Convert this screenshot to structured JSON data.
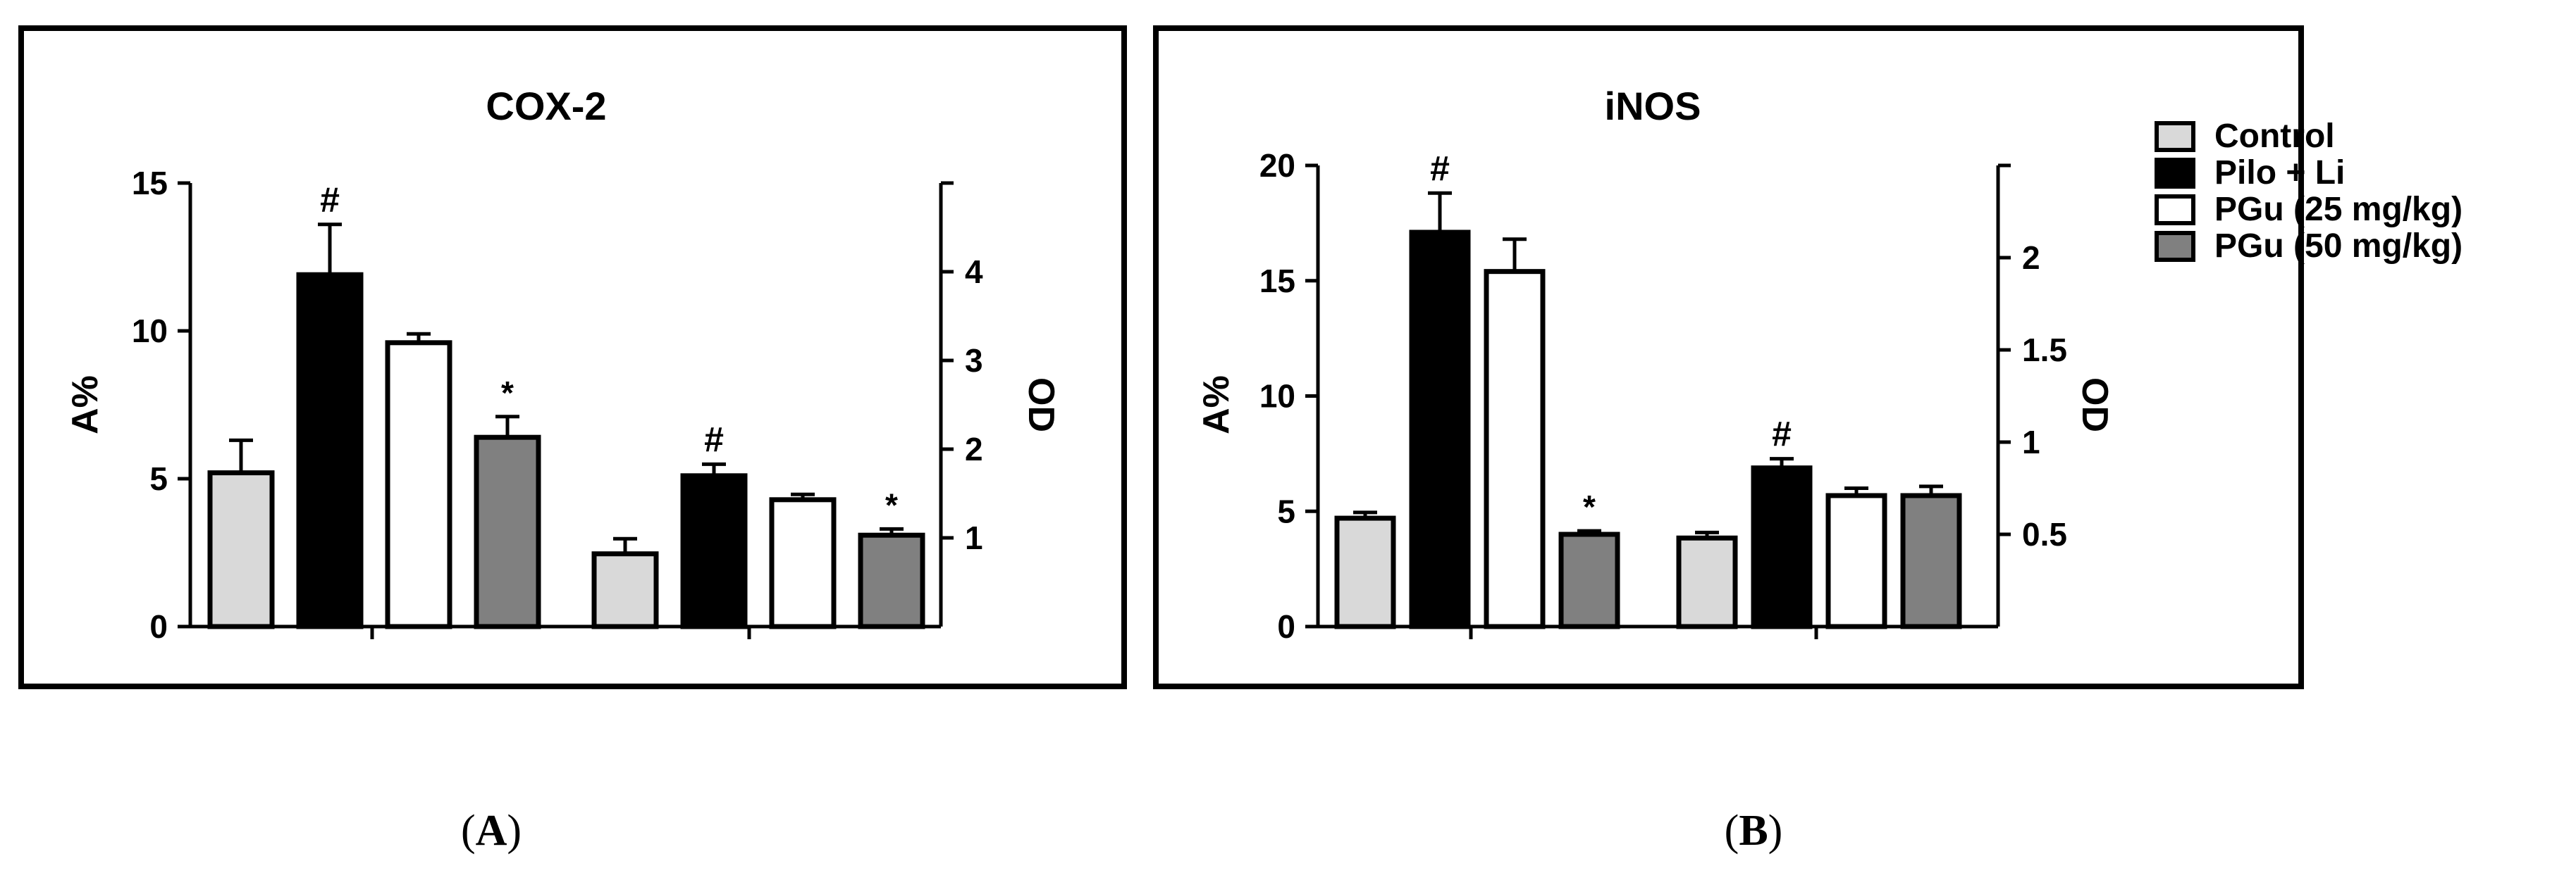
{
  "colors": {
    "Control": "#d9d9d9",
    "Pilo + Li": "#000000",
    "PGu (25 mg/kg)": "#ffffff",
    "PGu (50 mg/kg)": "#808080"
  },
  "legend": {
    "placement": "top-right of panel B",
    "entries": [
      "Control",
      "Pilo + Li",
      "PGu (25 mg/kg)",
      "PGu (50 mg/kg)"
    ]
  },
  "captions": {
    "a": "A",
    "b": "B"
  },
  "chart_data": [
    {
      "type": "bar",
      "title": "COX-2",
      "ylabel": "A%",
      "y2label": "OD",
      "ylim": [
        0,
        15
      ],
      "yticks": [
        "0",
        "5",
        "10",
        "15"
      ],
      "y2lim": [
        0,
        5
      ],
      "y2ticks": [
        "1",
        "2",
        "3",
        "4"
      ],
      "groups": [
        {
          "axis": "left",
          "bars": [
            {
              "series": "Control",
              "value": 5.2,
              "error": 1.1,
              "mark": ""
            },
            {
              "series": "Pilo + Li",
              "value": 11.9,
              "error": 1.7,
              "mark": "#"
            },
            {
              "series": "PGu (25 mg/kg)",
              "value": 9.6,
              "error": 0.3,
              "mark": ""
            },
            {
              "series": "PGu (50 mg/kg)",
              "value": 6.4,
              "error": 0.7,
              "mark": "*"
            }
          ]
        },
        {
          "axis": "right",
          "bars": [
            {
              "series": "Control",
              "value": 0.82,
              "error": 0.17,
              "mark": ""
            },
            {
              "series": "Pilo + Li",
              "value": 1.7,
              "error": 0.13,
              "mark": "#"
            },
            {
              "series": "PGu (25 mg/kg)",
              "value": 1.43,
              "error": 0.06,
              "mark": ""
            },
            {
              "series": "PGu (50 mg/kg)",
              "value": 1.03,
              "error": 0.07,
              "mark": "*"
            }
          ]
        }
      ]
    },
    {
      "type": "bar",
      "title": "iNOS",
      "ylabel": "A%",
      "y2label": "OD",
      "ylim": [
        0,
        20
      ],
      "yticks": [
        "0",
        "5",
        "10",
        "15",
        "20"
      ],
      "y2lim": [
        0,
        2.5
      ],
      "y2ticks": [
        "0.5",
        "1",
        "1.5",
        "2"
      ],
      "groups": [
        {
          "axis": "left",
          "bars": [
            {
              "series": "Control",
              "value": 4.7,
              "error": 0.25,
              "mark": ""
            },
            {
              "series": "Pilo + Li",
              "value": 17.1,
              "error": 1.7,
              "mark": "#"
            },
            {
              "series": "PGu (25 mg/kg)",
              "value": 15.4,
              "error": 1.4,
              "mark": ""
            },
            {
              "series": "PGu (50 mg/kg)",
              "value": 4.0,
              "error": 0.15,
              "mark": "*"
            }
          ]
        },
        {
          "axis": "right",
          "bars": [
            {
              "series": "Control",
              "value": 0.48,
              "error": 0.03,
              "mark": ""
            },
            {
              "series": "Pilo + Li",
              "value": 0.86,
              "error": 0.05,
              "mark": "#"
            },
            {
              "series": "PGu (25 mg/kg)",
              "value": 0.71,
              "error": 0.04,
              "mark": ""
            },
            {
              "series": "PGu (50 mg/kg)",
              "value": 0.71,
              "error": 0.05,
              "mark": ""
            }
          ]
        }
      ]
    }
  ]
}
